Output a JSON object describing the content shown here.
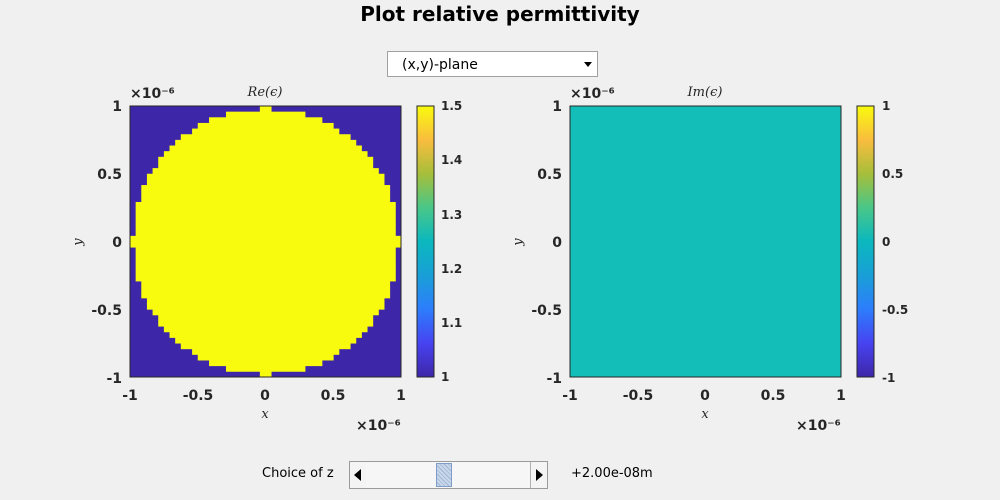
{
  "title": "Plot relative permittivity",
  "plane_select": {
    "value": "(x,y)-plane"
  },
  "left_plot": {
    "title": "Re(ϵ)",
    "xlabel": "x",
    "ylabel": "y",
    "xticks": [
      "-1",
      "-0.5",
      "0",
      "0.5",
      "1"
    ],
    "yticks": [
      "1",
      "0.5",
      "0",
      "-0.5",
      "-1"
    ],
    "x_exponent": "×10⁻⁶",
    "y_exponent": "×10⁻⁶",
    "colorbar_ticks": [
      "1.5",
      "1.4",
      "1.3",
      "1.2",
      "1.1",
      "1"
    ],
    "background_color": "#3e26a8",
    "circle_color": "#f9fb0e",
    "circle_radius_fraction": 0.98,
    "grid_n": 48
  },
  "right_plot": {
    "title": "Im(ϵ)",
    "xlabel": "x",
    "ylabel": "y",
    "xticks": [
      "-1",
      "-0.5",
      "0",
      "0.5",
      "1"
    ],
    "yticks": [
      "1",
      "0.5",
      "0",
      "-0.5",
      "-1"
    ],
    "x_exponent": "×10⁻⁶",
    "y_exponent": "×10⁻⁶",
    "colorbar_ticks": [
      "1",
      "0.5",
      "0",
      "-0.5",
      "-1"
    ],
    "fill_color": "#13beb8"
  },
  "slider": {
    "label": "Choice of z",
    "value_text": "+2.00e-08",
    "unit": "m",
    "position_fraction": 0.47
  }
}
